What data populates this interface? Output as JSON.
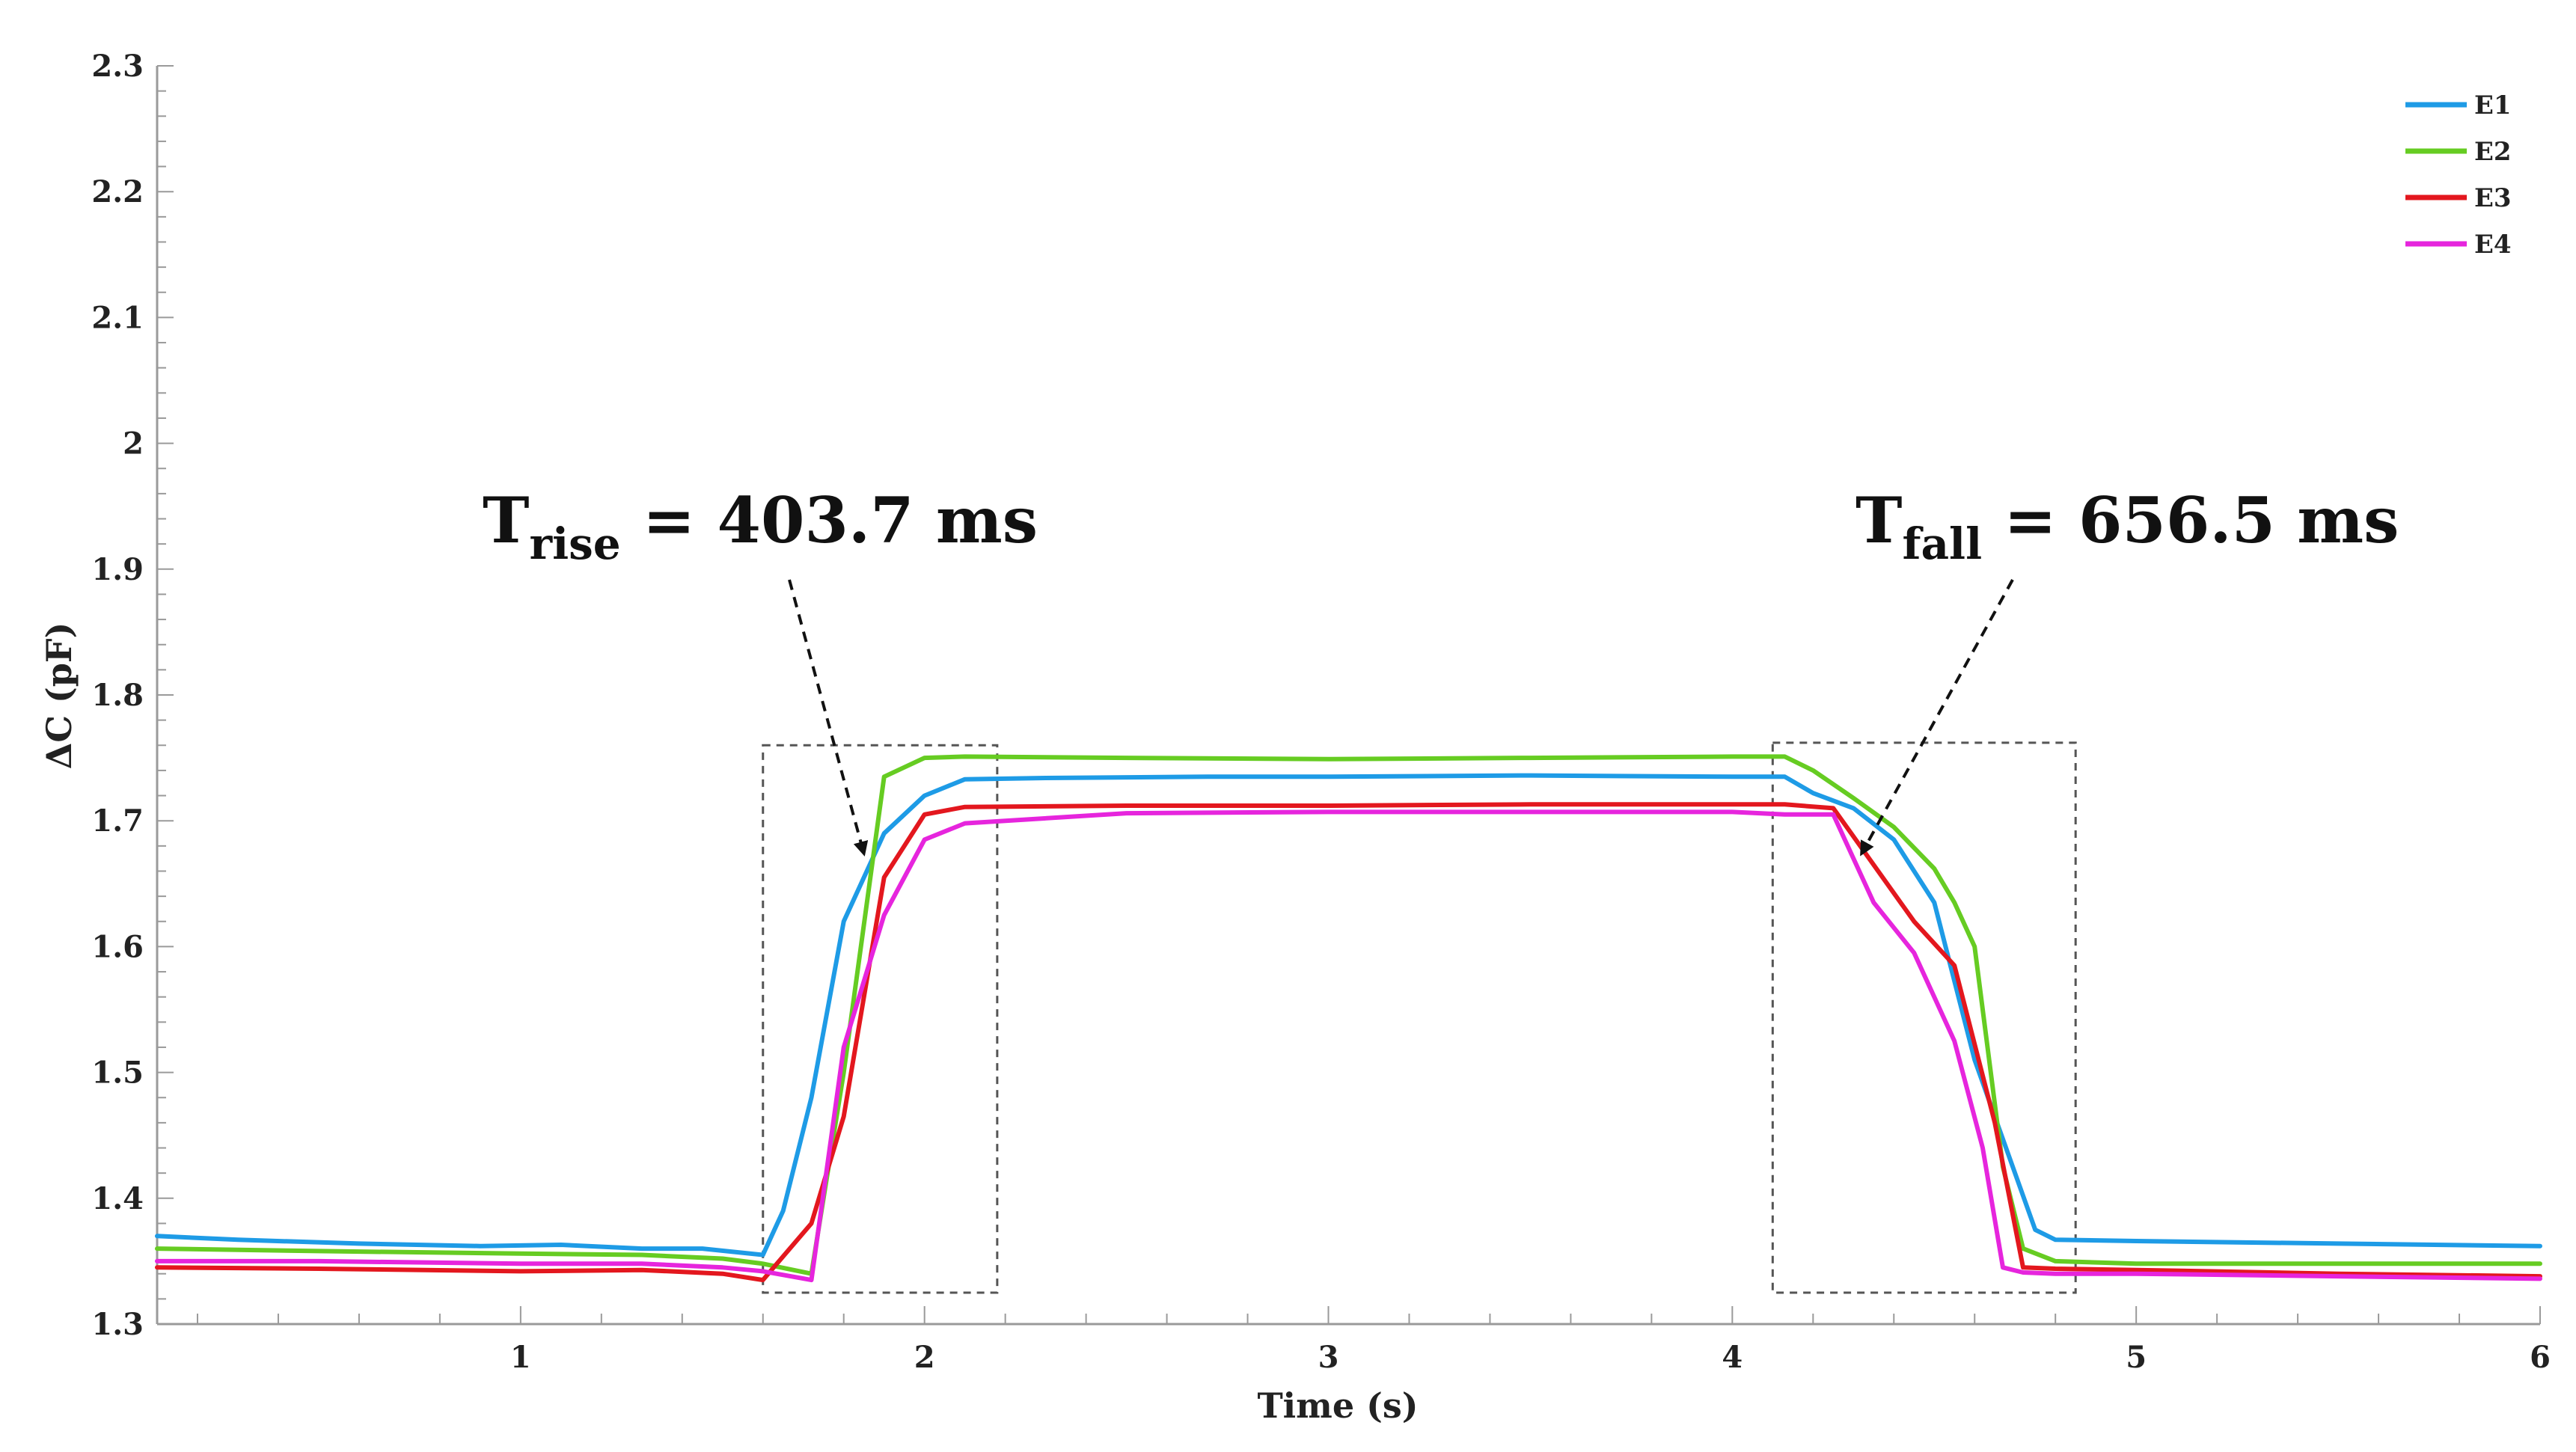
{
  "chart_data": {
    "type": "line",
    "title": "",
    "xlabel": "Time (s)",
    "ylabel": "ΔC (pF)",
    "xlim": [
      0.1,
      6
    ],
    "ylim": [
      1.3,
      2.3
    ],
    "x_ticks": [
      1,
      2,
      3,
      4,
      5,
      6
    ],
    "y_ticks": [
      "1.3",
      "1.4",
      "1.5",
      "1.6",
      "1.7",
      "1.8",
      "1.9",
      "2",
      "2.1",
      "2.2",
      "2.3"
    ],
    "legend_position": "top-right",
    "series": [
      {
        "name": "E1",
        "color": "#1e9be6",
        "x": [
          0.1,
          0.3,
          0.6,
          0.9,
          1.1,
          1.3,
          1.45,
          1.6,
          1.65,
          1.72,
          1.8,
          1.9,
          2.0,
          2.1,
          2.3,
          2.7,
          3.0,
          3.5,
          4.0,
          4.13,
          4.2,
          4.3,
          4.4,
          4.5,
          4.6,
          4.7,
          4.75,
          4.8,
          5.0,
          5.5,
          6.0
        ],
        "y": [
          1.37,
          1.367,
          1.364,
          1.362,
          1.363,
          1.36,
          1.36,
          1.355,
          1.39,
          1.48,
          1.62,
          1.69,
          1.72,
          1.733,
          1.734,
          1.735,
          1.735,
          1.736,
          1.735,
          1.735,
          1.722,
          1.71,
          1.685,
          1.635,
          1.51,
          1.42,
          1.375,
          1.367,
          1.366,
          1.364,
          1.362
        ]
      },
      {
        "name": "E2",
        "color": "#66cc22",
        "x": [
          0.1,
          0.5,
          1.0,
          1.3,
          1.5,
          1.6,
          1.72,
          1.8,
          1.9,
          2.0,
          2.1,
          2.5,
          3.0,
          3.5,
          4.0,
          4.13,
          4.2,
          4.3,
          4.4,
          4.5,
          4.55,
          4.6,
          4.67,
          4.72,
          4.8,
          5.0,
          5.5,
          6.0
        ],
        "y": [
          1.36,
          1.358,
          1.356,
          1.355,
          1.352,
          1.348,
          1.34,
          1.5,
          1.735,
          1.75,
          1.751,
          1.75,
          1.749,
          1.75,
          1.751,
          1.751,
          1.74,
          1.718,
          1.695,
          1.662,
          1.635,
          1.6,
          1.425,
          1.36,
          1.35,
          1.348,
          1.348,
          1.348
        ]
      },
      {
        "name": "E3",
        "color": "#e3171e",
        "x": [
          0.1,
          0.5,
          1.0,
          1.3,
          1.5,
          1.6,
          1.72,
          1.8,
          1.9,
          2.0,
          2.1,
          2.5,
          3.0,
          3.5,
          4.0,
          4.13,
          4.25,
          4.35,
          4.45,
          4.55,
          4.65,
          4.72,
          4.8,
          5.0,
          5.5,
          6.0
        ],
        "y": [
          1.345,
          1.344,
          1.342,
          1.343,
          1.34,
          1.335,
          1.38,
          1.465,
          1.655,
          1.705,
          1.711,
          1.712,
          1.712,
          1.713,
          1.713,
          1.713,
          1.71,
          1.665,
          1.62,
          1.585,
          1.46,
          1.345,
          1.344,
          1.343,
          1.34,
          1.338
        ]
      },
      {
        "name": "E4",
        "color": "#e625dd",
        "x": [
          0.1,
          0.5,
          1.0,
          1.3,
          1.5,
          1.6,
          1.72,
          1.8,
          1.9,
          2.0,
          2.1,
          2.5,
          3.0,
          3.5,
          4.0,
          4.13,
          4.25,
          4.35,
          4.45,
          4.55,
          4.62,
          4.67,
          4.72,
          4.8,
          5.0,
          5.5,
          6.0
        ],
        "y": [
          1.35,
          1.35,
          1.348,
          1.348,
          1.345,
          1.342,
          1.335,
          1.52,
          1.625,
          1.685,
          1.698,
          1.706,
          1.707,
          1.707,
          1.707,
          1.705,
          1.705,
          1.635,
          1.595,
          1.525,
          1.44,
          1.345,
          1.341,
          1.34,
          1.34,
          1.338,
          1.336
        ]
      }
    ],
    "annotations": [
      {
        "name": "rise",
        "prefix": "T",
        "subscript": "rise",
        "text": " = 403.7 ms",
        "box_x": [
          1.6,
          2.18
        ],
        "box_y": [
          1.325,
          1.76
        ],
        "arrow_tip": [
          1.85,
          1.775
        ]
      },
      {
        "name": "fall",
        "prefix": "T",
        "subscript": "fall",
        "text": " = 656.5 ms",
        "box_x": [
          4.1,
          4.85
        ],
        "box_y": [
          1.325,
          1.762
        ],
        "arrow_tip": [
          4.32,
          1.775
        ]
      }
    ]
  }
}
